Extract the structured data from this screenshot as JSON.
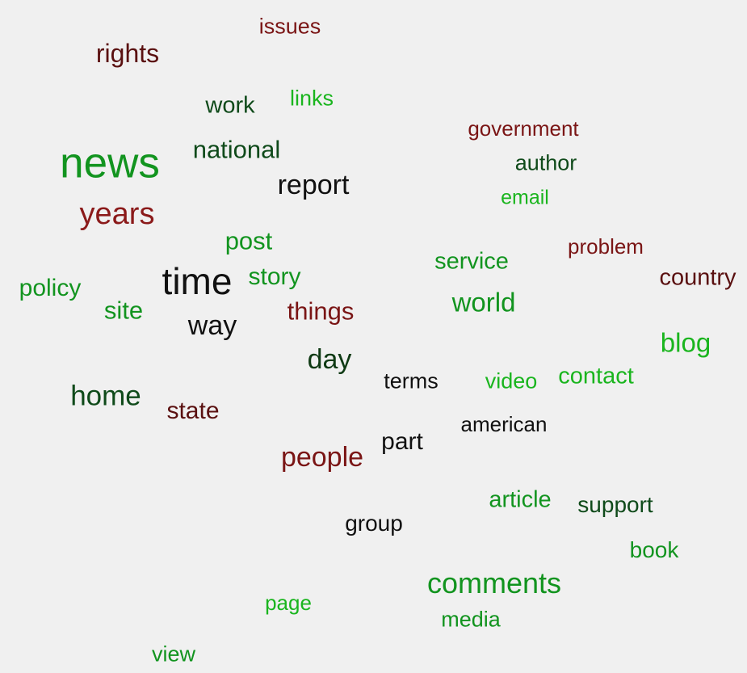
{
  "palette": {
    "background": "#f0f0f0",
    "maroon": "#7a1515",
    "dark_red": "#8b1a1a",
    "dark_green": "#0f4a1a",
    "green": "#12941f",
    "bright_green": "#1ab51e",
    "black": "#111111"
  },
  "words": [
    {
      "text": "issues",
      "color": "#7a1515"
    },
    {
      "text": "rights",
      "color": "#5a1010"
    },
    {
      "text": "links",
      "color": "#1ab51e"
    },
    {
      "text": "work",
      "color": "#0f4a1a"
    },
    {
      "text": "government",
      "color": "#7a1515"
    },
    {
      "text": "news",
      "color": "#12941f"
    },
    {
      "text": "national",
      "color": "#0f4a1a"
    },
    {
      "text": "author",
      "color": "#0f4a1a"
    },
    {
      "text": "report",
      "color": "#111111"
    },
    {
      "text": "email",
      "color": "#1ab51e"
    },
    {
      "text": "years",
      "color": "#8b1a1a"
    },
    {
      "text": "post",
      "color": "#12941f"
    },
    {
      "text": "problem",
      "color": "#7a1515"
    },
    {
      "text": "service",
      "color": "#12941f"
    },
    {
      "text": "country",
      "color": "#5a1010"
    },
    {
      "text": "time",
      "color": "#111111"
    },
    {
      "text": "story",
      "color": "#12941f"
    },
    {
      "text": "policy",
      "color": "#12941f"
    },
    {
      "text": "world",
      "color": "#12941f"
    },
    {
      "text": "things",
      "color": "#7a1515"
    },
    {
      "text": "site",
      "color": "#12941f"
    },
    {
      "text": "way",
      "color": "#111111"
    },
    {
      "text": "blog",
      "color": "#1ab51e"
    },
    {
      "text": "day",
      "color": "#0f3a14"
    },
    {
      "text": "terms",
      "color": "#111111"
    },
    {
      "text": "video",
      "color": "#1ab51e"
    },
    {
      "text": "contact",
      "color": "#1ab51e"
    },
    {
      "text": "home",
      "color": "#0f4a1a"
    },
    {
      "text": "state",
      "color": "#5a1010"
    },
    {
      "text": "american",
      "color": "#111111"
    },
    {
      "text": "part",
      "color": "#111111"
    },
    {
      "text": "people",
      "color": "#7a1515"
    },
    {
      "text": "article",
      "color": "#12941f"
    },
    {
      "text": "support",
      "color": "#0f4a1a"
    },
    {
      "text": "group",
      "color": "#111111"
    },
    {
      "text": "book",
      "color": "#12941f"
    },
    {
      "text": "comments",
      "color": "#12941f"
    },
    {
      "text": "page",
      "color": "#1ab51e"
    },
    {
      "text": "media",
      "color": "#12941f"
    },
    {
      "text": "view",
      "color": "#12941f"
    }
  ]
}
